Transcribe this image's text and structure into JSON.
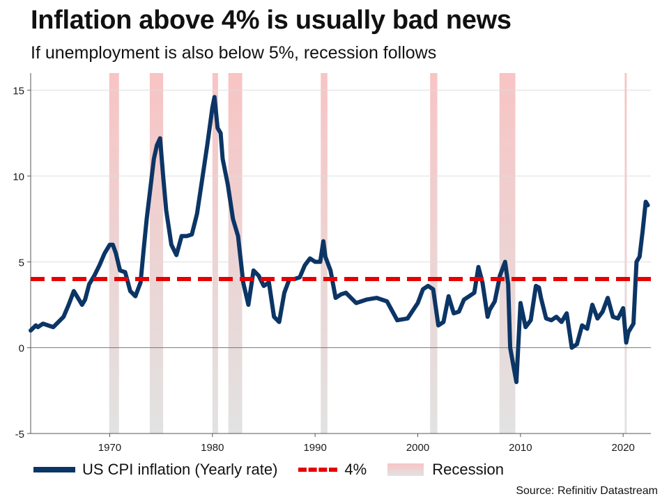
{
  "title": "Inflation above 4% is usually bad news",
  "subtitle": "If unemployment is also below 5%, recession follows",
  "source": "Source: Refinitiv Datastream",
  "colors": {
    "cpi_line": "#0b3565",
    "threshold": "#e60000",
    "recession_top": "#f8c4c4",
    "recession_bottom": "#e2e2e2",
    "grid": "#dddddd",
    "axis": "#555555"
  },
  "chart_data": {
    "type": "line",
    "title": "Inflation above 4% is usually bad news",
    "subtitle": "If unemployment is also below 5%, recession follows",
    "xlabel": "",
    "ylabel": "",
    "xlim": [
      1962.3,
      2022.7
    ],
    "ylim": [
      -5,
      16
    ],
    "x_ticks": [
      1970,
      1980,
      1990,
      2000,
      2010,
      2020
    ],
    "y_ticks": [
      -5,
      0,
      5,
      10,
      15
    ],
    "grid": "horizontal",
    "legend": [
      "US CPI inflation (Yearly rate)",
      "4%",
      "Recession"
    ],
    "legend_position": "bottom",
    "threshold": {
      "name": "4%",
      "value": 4
    },
    "recessions": [
      [
        1969.95,
        1970.9
      ],
      [
        1973.9,
        1975.2
      ],
      [
        1980.0,
        1980.55
      ],
      [
        1981.55,
        1982.9
      ],
      [
        1990.55,
        1991.2
      ],
      [
        2001.2,
        2001.9
      ],
      [
        2007.95,
        2009.5
      ],
      [
        2020.15,
        2020.35
      ]
    ],
    "series": [
      {
        "name": "US CPI inflation (Yearly rate)",
        "x": [
          1962.3,
          1962.8,
          1963.0,
          1963.5,
          1964.0,
          1964.5,
          1965.0,
          1965.5,
          1966.0,
          1966.5,
          1967.0,
          1967.3,
          1967.6,
          1968.0,
          1968.5,
          1969.0,
          1969.5,
          1970.0,
          1970.3,
          1970.6,
          1971.0,
          1971.5,
          1972.0,
          1972.5,
          1973.0,
          1973.3,
          1973.6,
          1974.0,
          1974.3,
          1974.6,
          1974.9,
          1975.2,
          1975.5,
          1976.0,
          1976.5,
          1977.0,
          1977.5,
          1978.0,
          1978.5,
          1979.0,
          1979.5,
          1980.0,
          1980.2,
          1980.5,
          1980.8,
          1981.0,
          1981.5,
          1982.0,
          1982.5,
          1983.0,
          1983.5,
          1984.0,
          1984.5,
          1985.0,
          1985.5,
          1986.0,
          1986.5,
          1987.0,
          1987.5,
          1988.0,
          1988.5,
          1989.0,
          1989.5,
          1990.0,
          1990.5,
          1990.8,
          1991.0,
          1991.5,
          1992.0,
          1992.5,
          1993.0,
          1994.0,
          1995.0,
          1996.0,
          1997.0,
          1998.0,
          1999.0,
          2000.0,
          2000.5,
          2001.0,
          2001.5,
          2002.0,
          2002.5,
          2003.0,
          2003.5,
          2004.0,
          2004.5,
          2005.0,
          2005.5,
          2005.9,
          2006.3,
          2006.8,
          2007.0,
          2007.5,
          2008.0,
          2008.5,
          2008.8,
          2009.0,
          2009.3,
          2009.6,
          2010.0,
          2010.5,
          2011.0,
          2011.5,
          2011.8,
          2012.0,
          2012.5,
          2013.0,
          2013.5,
          2014.0,
          2014.5,
          2015.0,
          2015.5,
          2016.0,
          2016.5,
          2017.0,
          2017.5,
          2018.0,
          2018.5,
          2019.0,
          2019.5,
          2020.0,
          2020.3,
          2020.5,
          2020.8,
          2021.0,
          2021.3,
          2021.6,
          2021.9,
          2022.2,
          2022.4
        ],
        "values": [
          1.0,
          1.3,
          1.2,
          1.4,
          1.3,
          1.2,
          1.5,
          1.8,
          2.5,
          3.3,
          2.8,
          2.5,
          2.8,
          3.7,
          4.2,
          4.8,
          5.5,
          6.0,
          6.0,
          5.5,
          4.5,
          4.4,
          3.3,
          3.0,
          3.8,
          5.7,
          7.5,
          9.5,
          11.0,
          11.8,
          12.2,
          10.0,
          8.0,
          6.0,
          5.4,
          6.5,
          6.5,
          6.6,
          7.8,
          9.8,
          11.8,
          14.0,
          14.6,
          12.8,
          12.5,
          11.0,
          9.5,
          7.5,
          6.5,
          3.8,
          2.5,
          4.5,
          4.2,
          3.6,
          3.8,
          1.8,
          1.5,
          3.2,
          4.0,
          4.0,
          4.1,
          4.8,
          5.2,
          5.0,
          5.0,
          6.2,
          5.3,
          4.5,
          2.9,
          3.1,
          3.2,
          2.6,
          2.8,
          2.9,
          2.7,
          1.6,
          1.7,
          2.6,
          3.4,
          3.6,
          3.4,
          1.3,
          1.5,
          3.0,
          2.0,
          2.1,
          2.8,
          3.0,
          3.2,
          4.7,
          3.8,
          1.8,
          2.2,
          2.7,
          4.2,
          5.0,
          3.7,
          0.0,
          -1.0,
          -2.0,
          2.6,
          1.2,
          1.6,
          3.6,
          3.5,
          2.9,
          1.7,
          1.6,
          1.8,
          1.5,
          2.0,
          0.0,
          0.2,
          1.3,
          1.1,
          2.5,
          1.7,
          2.1,
          2.9,
          1.8,
          1.7,
          2.3,
          0.3,
          0.9,
          1.2,
          1.4,
          5.0,
          5.3,
          6.8,
          8.5,
          8.3
        ]
      }
    ]
  },
  "legend": {
    "cpi_label": "US CPI inflation (Yearly rate)",
    "threshold_label": "4%",
    "recession_label": "Recession"
  }
}
